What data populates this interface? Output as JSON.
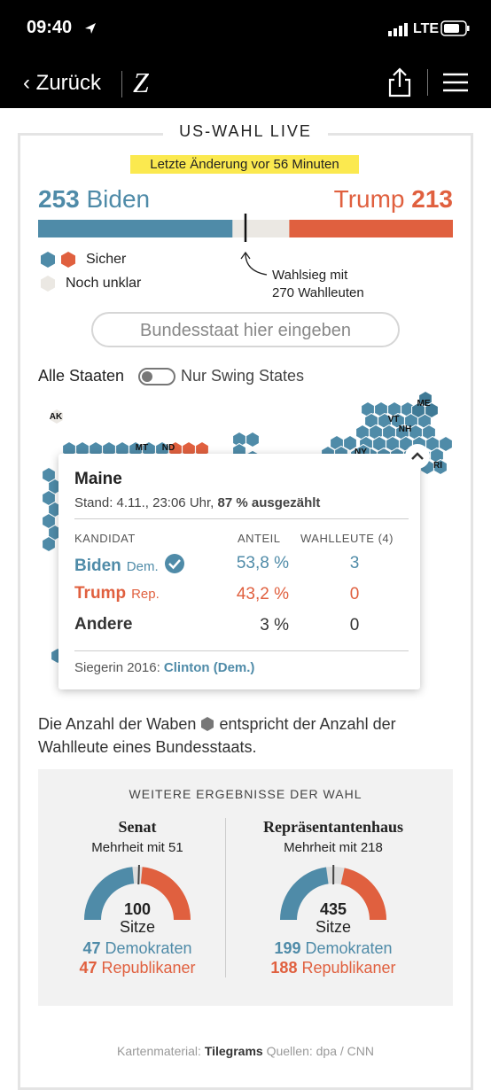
{
  "status_bar": {
    "time": "09:40",
    "network": "LTE"
  },
  "nav": {
    "back": "Zurück",
    "logo": "Z"
  },
  "header": {
    "title": "US-WAHL LIVE",
    "last_update": "Letzte Änderung vor 56 Minuten"
  },
  "tally": {
    "biden": {
      "count": 253,
      "name": "Biden"
    },
    "trump": {
      "name": "Trump",
      "count": 213
    },
    "threshold": {
      "label": "Wahlsieg mit",
      "value": 270,
      "unit": "Wahlleuten"
    }
  },
  "legend": {
    "safe": "Sicher",
    "unclear": "Noch unklar"
  },
  "search": {
    "placeholder": "Bundesstaat hier eingeben"
  },
  "toggle": {
    "left": "Alle Staaten",
    "right": "Nur Swing States"
  },
  "map": {
    "labels": [
      "AK",
      "MT",
      "ND",
      "ME",
      "VT",
      "NH",
      "NY",
      "RI"
    ]
  },
  "popup": {
    "state": "Maine",
    "stand": "Stand: 4.11., 23:06 Uhr,",
    "counted": "87 %",
    "counted_label": "ausgezählt",
    "columns": [
      "KANDIDAT",
      "ANTEIL",
      "WAHLLEUTE (4)"
    ],
    "rows": [
      {
        "name": "Biden",
        "party": "Dem.",
        "share": "53,8 %",
        "electors": 3
      },
      {
        "name": "Trump",
        "party": "Rep.",
        "share": "43,2 %",
        "electors": 0
      },
      {
        "name": "Andere",
        "share": "3 %",
        "electors": 0
      }
    ],
    "winner_2016_label": "Siegerin 2016:",
    "winner_2016": "Clinton (Dem.)"
  },
  "note": {
    "before": "Die Anzahl der Waben",
    "after": "entspricht der Anzahl der Wahlleute eines Bundesstaats."
  },
  "results": {
    "title": "WEITERE ERGEBNISSE DER WAHL",
    "bodies": [
      {
        "name": "Senat",
        "majority_label": "Mehrheit mit",
        "majority": 51,
        "total": 100,
        "total_label": "Sitze",
        "dem": {
          "count": 47,
          "label": "Demokraten"
        },
        "rep": {
          "count": 47,
          "label": "Republikaner"
        }
      },
      {
        "name": "Repräsentantenhaus",
        "majority_label": "Mehrheit mit",
        "majority": 218,
        "total": 435,
        "total_label": "Sitze",
        "dem": {
          "count": 199,
          "label": "Demokraten"
        },
        "rep": {
          "count": 188,
          "label": "Republikaner"
        }
      }
    ]
  },
  "footer": {
    "map_credit_label": "Kartenmaterial:",
    "map_credit": "Tilegrams",
    "sources": "Quellen: dpa / CNN"
  }
}
